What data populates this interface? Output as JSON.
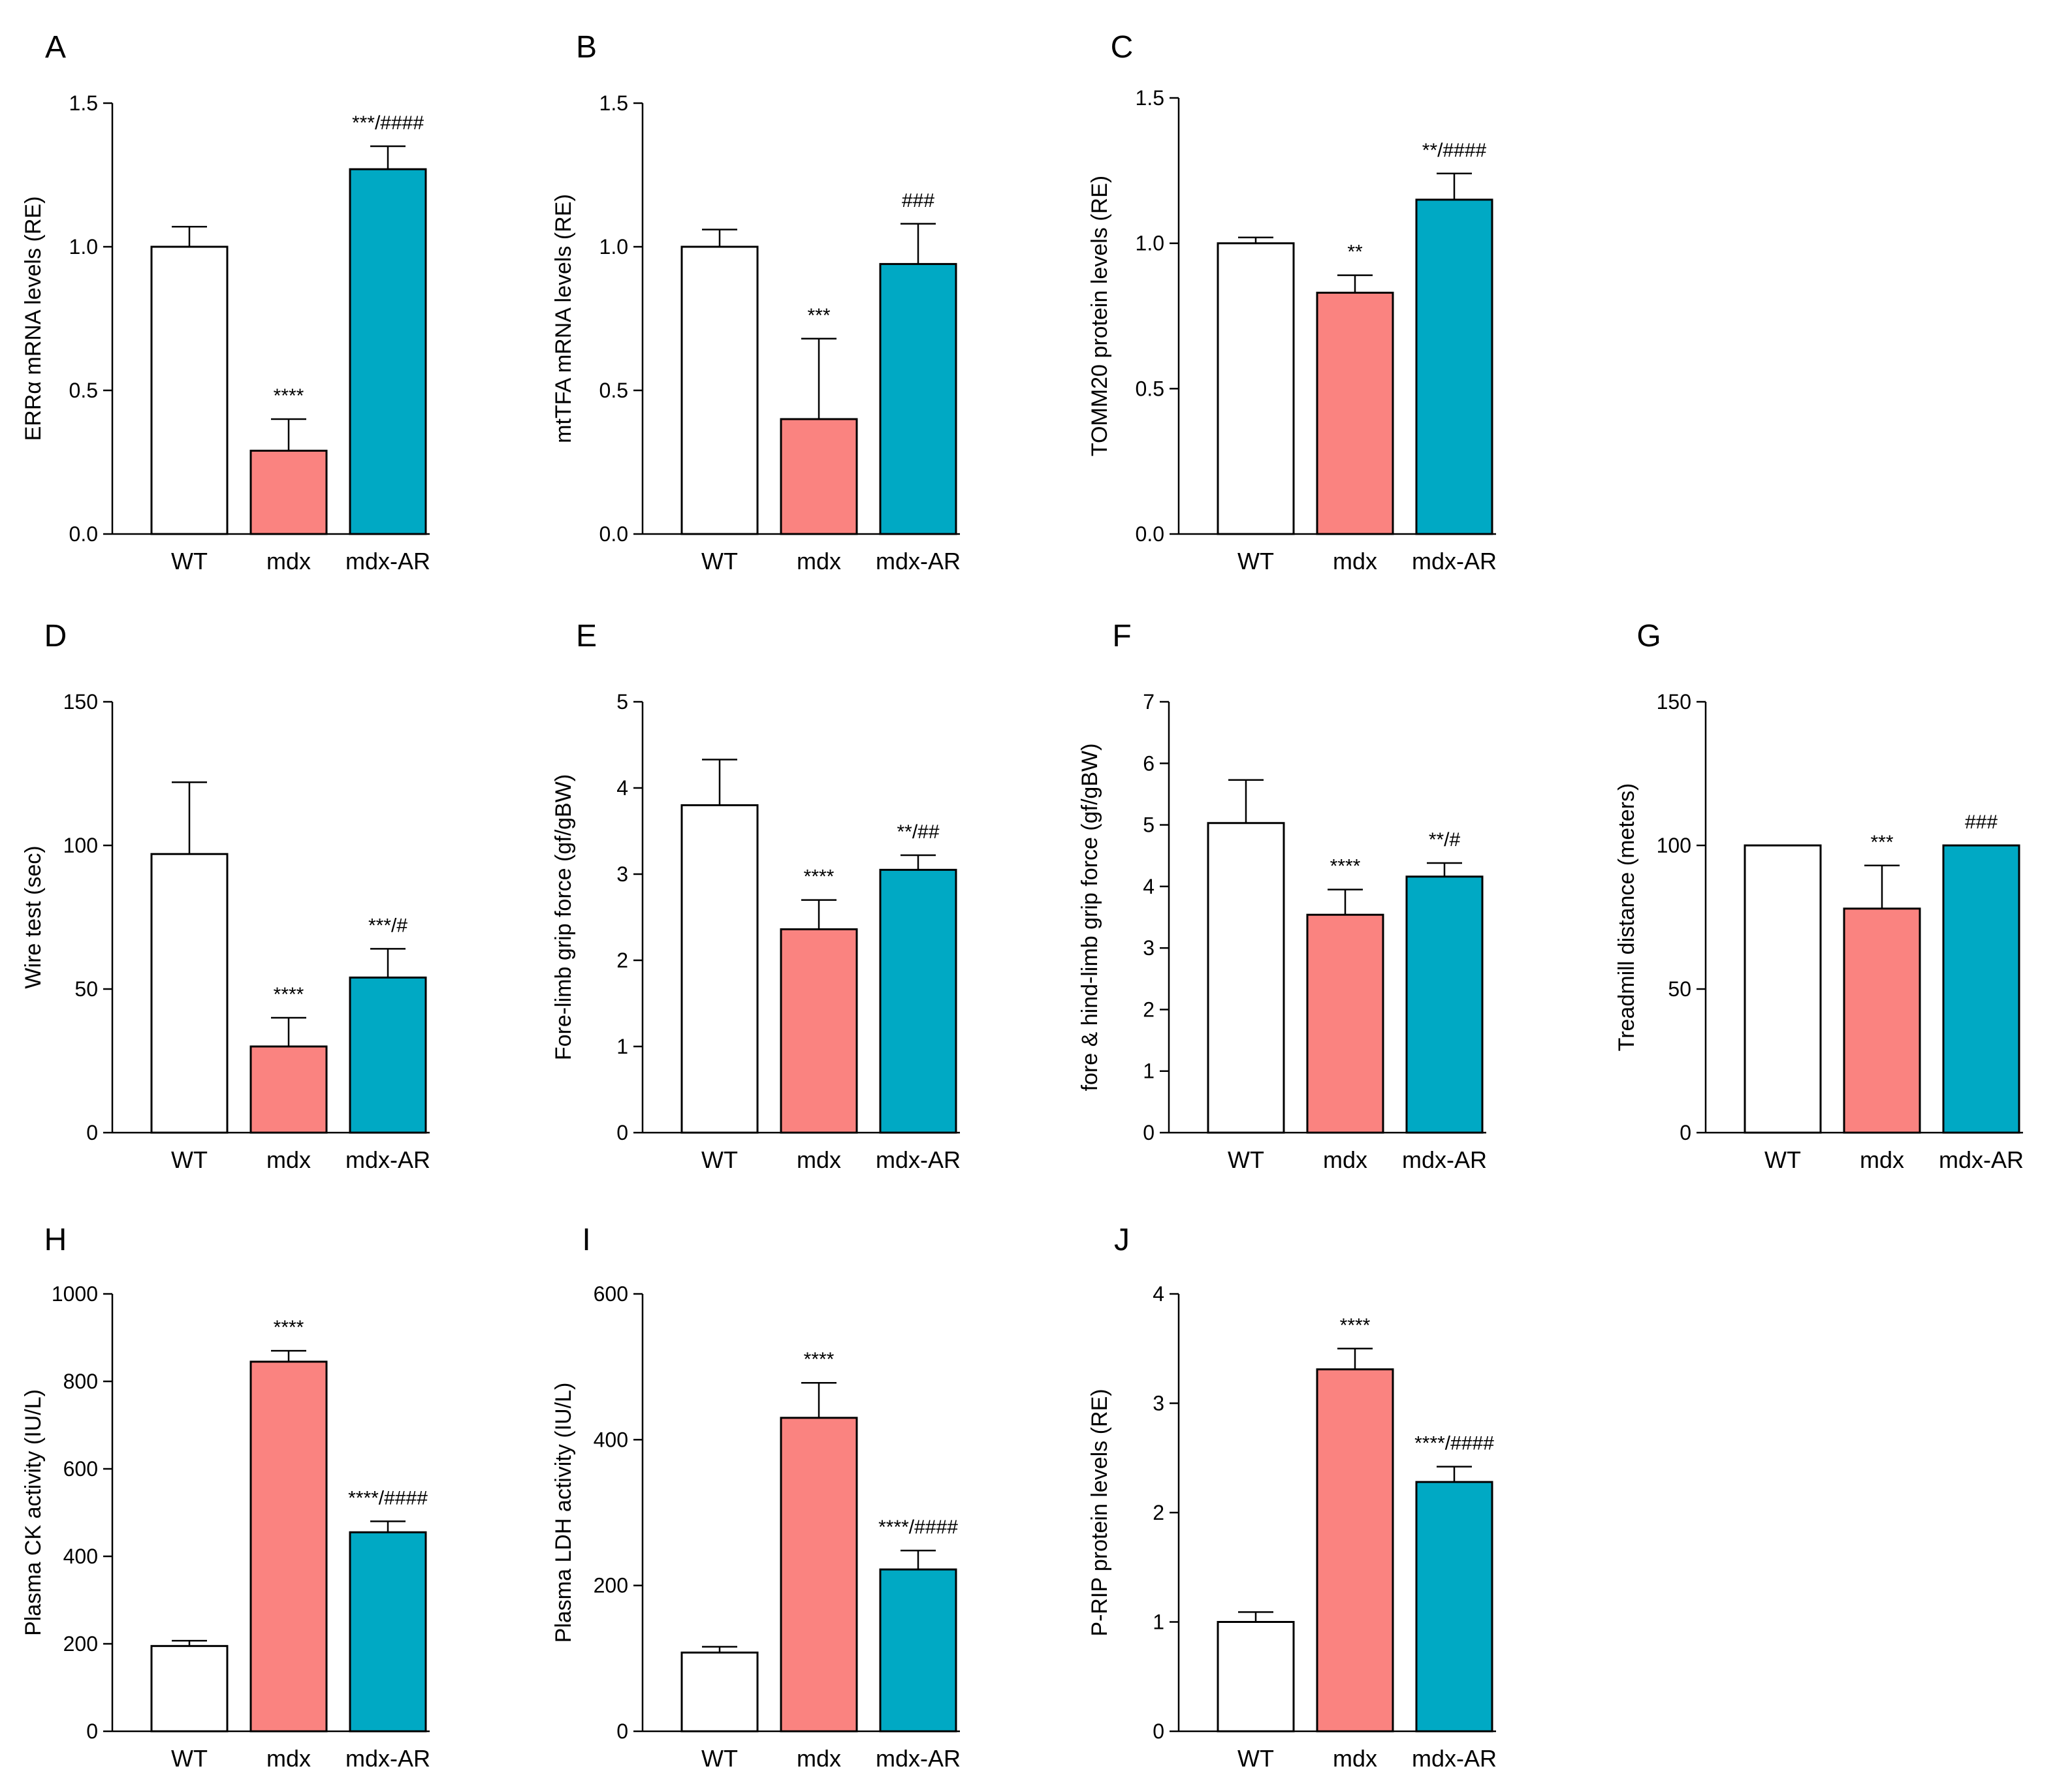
{
  "colors": {
    "WT": "#ffffff",
    "mdx": "#fa8380",
    "mdx-AR": "#00a9c4"
  },
  "chart_data": [
    {
      "type": "bar",
      "panel": "A",
      "ylabel": "ERRα mRNA levels (RE)",
      "categories": [
        "WT",
        "mdx",
        "mdx-AR"
      ],
      "values": [
        1.0,
        0.29,
        1.27
      ],
      "errors": [
        0.07,
        0.11,
        0.08
      ],
      "annotations": [
        "",
        "****",
        "***/####"
      ],
      "ylim": [
        0,
        1.5
      ],
      "yticks": [
        0.0,
        0.5,
        1.0,
        1.5
      ],
      "ytick_labels": [
        "0.0",
        "0.5",
        "1.0",
        "1.5"
      ]
    },
    {
      "type": "bar",
      "panel": "B",
      "ylabel": "mtTFA mRNA levels (RE)",
      "categories": [
        "WT",
        "mdx",
        "mdx-AR"
      ],
      "values": [
        1.0,
        0.4,
        0.94
      ],
      "errors": [
        0.06,
        0.28,
        0.14
      ],
      "annotations": [
        "",
        "***",
        "###"
      ],
      "ylim": [
        0,
        1.5
      ],
      "yticks": [
        0.0,
        0.5,
        1.0,
        1.5
      ],
      "ytick_labels": [
        "0.0",
        "0.5",
        "1.0",
        "1.5"
      ]
    },
    {
      "type": "bar",
      "panel": "C",
      "ylabel": "TOMM20 protein levels (RE)",
      "categories": [
        "WT",
        "mdx",
        "mdx-AR"
      ],
      "values": [
        1.0,
        0.83,
        1.15
      ],
      "errors": [
        0.02,
        0.06,
        0.09
      ],
      "annotations": [
        "",
        "**",
        "**/####"
      ],
      "ylim": [
        0,
        1.5
      ],
      "yticks": [
        0.0,
        0.5,
        1.0,
        1.5
      ],
      "ytick_labels": [
        "0.0",
        "0.5",
        "1.0",
        "1.5"
      ]
    },
    {
      "type": "bar",
      "panel": "D",
      "ylabel": "Wire test (sec)",
      "categories": [
        "WT",
        "mdx",
        "mdx-AR"
      ],
      "values": [
        97,
        30,
        54
      ],
      "errors": [
        25,
        10,
        10
      ],
      "annotations": [
        "",
        "****",
        "***/#"
      ],
      "ylim": [
        0,
        150
      ],
      "yticks": [
        0,
        50,
        100,
        150
      ],
      "ytick_labels": [
        "0",
        "50",
        "100",
        "150"
      ]
    },
    {
      "type": "bar",
      "panel": "E",
      "ylabel": "Fore-limb grip force (gf/gBW)",
      "categories": [
        "WT",
        "mdx",
        "mdx-AR"
      ],
      "values": [
        3.8,
        2.36,
        3.05
      ],
      "errors": [
        0.53,
        0.34,
        0.17
      ],
      "annotations": [
        "",
        "****",
        "**/##"
      ],
      "ylim": [
        0,
        5
      ],
      "yticks": [
        0,
        1,
        2,
        3,
        4,
        5
      ],
      "ytick_labels": [
        "0",
        "1",
        "2",
        "3",
        "4",
        "5"
      ]
    },
    {
      "type": "bar",
      "panel": "F",
      "ylabel": "fore & hind-limb grip force (gf/gBW)",
      "categories": [
        "WT",
        "mdx",
        "mdx-AR"
      ],
      "values": [
        5.03,
        3.54,
        4.16
      ],
      "errors": [
        0.7,
        0.41,
        0.22
      ],
      "annotations": [
        "",
        "****",
        "**/#"
      ],
      "ylim": [
        0,
        7
      ],
      "yticks": [
        0,
        1,
        2,
        3,
        4,
        5,
        6,
        7
      ],
      "ytick_labels": [
        "0",
        "1",
        "2",
        "3",
        "4",
        "5",
        "6",
        "7"
      ]
    },
    {
      "type": "bar",
      "panel": "G",
      "ylabel": "Treadmill distance (meters)",
      "categories": [
        "WT",
        "mdx",
        "mdx-AR"
      ],
      "values": [
        100,
        78,
        100
      ],
      "errors": [
        0,
        15,
        0
      ],
      "annotations": [
        "",
        "***",
        "###"
      ],
      "ylim": [
        0,
        150
      ],
      "yticks": [
        0,
        50,
        100,
        150
      ],
      "ytick_labels": [
        "0",
        "50",
        "100",
        "150"
      ]
    },
    {
      "type": "bar",
      "panel": "H",
      "ylabel": "Plasma CK activity (IU/L)",
      "categories": [
        "WT",
        "mdx",
        "mdx-AR"
      ],
      "values": [
        195,
        845,
        455
      ],
      "errors": [
        12,
        25,
        25
      ],
      "annotations": [
        "",
        "****",
        "****/####"
      ],
      "ylim": [
        0,
        1000
      ],
      "yticks": [
        0,
        200,
        400,
        600,
        800,
        1000
      ],
      "ytick_labels": [
        "0",
        "200",
        "400",
        "600",
        "800",
        "1000"
      ]
    },
    {
      "type": "bar",
      "panel": "I",
      "ylabel": "Plasma LDH activity (IU/L)",
      "categories": [
        "WT",
        "mdx",
        "mdx-AR"
      ],
      "values": [
        108,
        430,
        222
      ],
      "errors": [
        8,
        48,
        26
      ],
      "annotations": [
        "",
        "****",
        "****/####"
      ],
      "ylim": [
        0,
        600
      ],
      "yticks": [
        0,
        200,
        400,
        600
      ],
      "ytick_labels": [
        "0",
        "200",
        "400",
        "600"
      ]
    },
    {
      "type": "bar",
      "panel": "J",
      "ylabel": "P-RIP protein levels (RE)",
      "categories": [
        "WT",
        "mdx",
        "mdx-AR"
      ],
      "values": [
        1.0,
        3.31,
        2.28
      ],
      "errors": [
        0.09,
        0.19,
        0.14
      ],
      "annotations": [
        "",
        "****",
        "****/####"
      ],
      "ylim": [
        0,
        4
      ],
      "yticks": [
        0,
        1,
        2,
        3,
        4
      ],
      "ytick_labels": [
        "0",
        "1",
        "2",
        "3",
        "4"
      ]
    }
  ]
}
